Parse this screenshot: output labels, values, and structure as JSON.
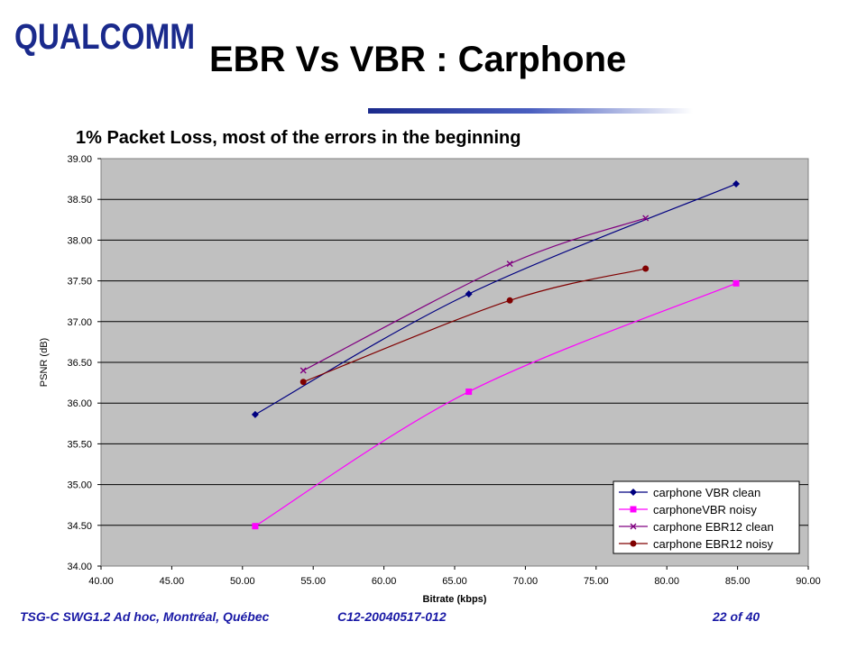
{
  "slide": {
    "logo_text": "QUALCOMM",
    "title": "EBR Vs VBR : Carphone",
    "subtitle": "1% Packet Loss, most of the errors in the beginning",
    "footer_left": "TSG-C SWG1.2 Ad hoc, Montréal, Québec",
    "footer_center": "C12-20040517-012",
    "footer_right": "22 of 40"
  },
  "colors": {
    "plot_bg": "#c0c0c0",
    "footer_text": "#1a1aa6",
    "title_rule": "#1a2a8c"
  },
  "chart_data": {
    "type": "line",
    "xlabel": "Bitrate (kbps)",
    "ylabel": "PSNR (dB)",
    "xlim": [
      40,
      90
    ],
    "ylim": [
      34,
      39
    ],
    "xticks": [
      "40.00",
      "45.00",
      "50.00",
      "55.00",
      "60.00",
      "65.00",
      "70.00",
      "75.00",
      "80.00",
      "85.00",
      "90.00"
    ],
    "yticks": [
      "34.00",
      "34.50",
      "35.00",
      "35.50",
      "36.00",
      "36.50",
      "37.00",
      "37.50",
      "38.00",
      "38.50",
      "39.00"
    ],
    "grid": "horizontal",
    "legend_position": "bottom-right",
    "series": [
      {
        "name": "carphone VBR clean",
        "color": "#000080",
        "marker": "diamond",
        "x": [
          50.9,
          66.0,
          84.9
        ],
        "y": [
          35.86,
          37.34,
          38.69
        ]
      },
      {
        "name": "carphoneVBR noisy",
        "color": "#ff00ff",
        "marker": "square",
        "x": [
          50.9,
          66.0,
          84.9
        ],
        "y": [
          34.49,
          36.14,
          37.47
        ]
      },
      {
        "name": "carphone EBR12 clean",
        "color": "#800080",
        "marker": "x",
        "x": [
          54.3,
          68.9,
          78.5
        ],
        "y": [
          36.4,
          37.71,
          38.27
        ]
      },
      {
        "name": "carphone EBR12 noisy",
        "color": "#800000",
        "marker": "circle",
        "x": [
          54.3,
          68.9,
          78.5
        ],
        "y": [
          36.26,
          37.26,
          37.65
        ]
      }
    ]
  }
}
